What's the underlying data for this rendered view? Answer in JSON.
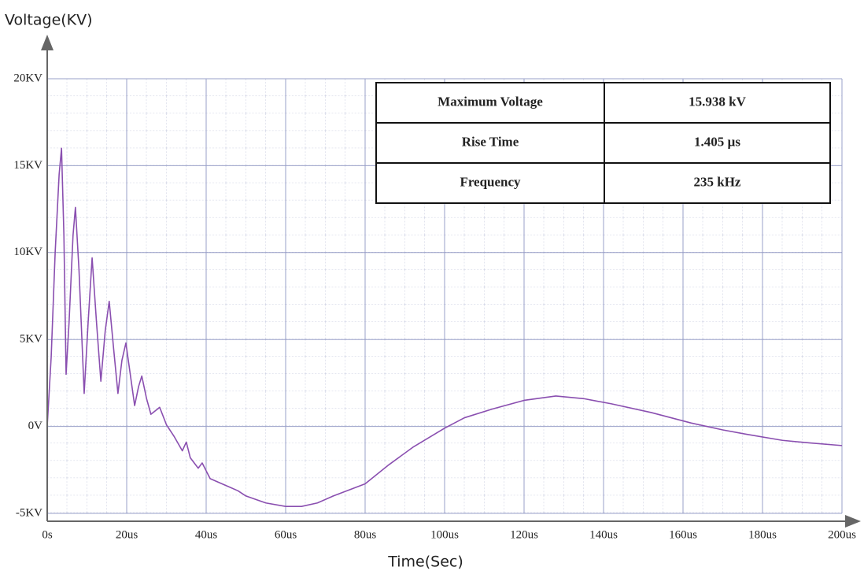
{
  "chart_data": {
    "type": "line",
    "y_label": "Voltage(KV)",
    "x_label": "Time(Sec)",
    "x": [
      0,
      1,
      2,
      3,
      3.6,
      4.2,
      4.75,
      5.5,
      6.5,
      7.1,
      8,
      9.3,
      10.3,
      11.3,
      12.4,
      13.5,
      14.6,
      15.6,
      16.7,
      17.8,
      18.8,
      19.8,
      20.9,
      22,
      23,
      23.8,
      25,
      26.1,
      27.2,
      28.3,
      30,
      32,
      34,
      35,
      36,
      38,
      39,
      41,
      44,
      46,
      48,
      50,
      55,
      60,
      64,
      68,
      72,
      80,
      86,
      92,
      100,
      105,
      112,
      120,
      128,
      135,
      142,
      152,
      162,
      170,
      176,
      185,
      192,
      200
    ],
    "series": [
      {
        "color": "#8a4fb0",
        "values": [
          0,
          4,
          10,
          14.5,
          16,
          11,
          3,
          6,
          11,
          12.6,
          9,
          1.9,
          6,
          9.7,
          6,
          2.6,
          5.5,
          7.2,
          4.5,
          1.9,
          3.8,
          4.8,
          3,
          1.2,
          2.3,
          2.9,
          1.6,
          0.7,
          0.9,
          1.1,
          0.1,
          -0.6,
          -1.4,
          -0.9,
          -1.8,
          -2.4,
          -2.1,
          -3,
          -3.3,
          -3.5,
          -3.7,
          -4.0,
          -4.4,
          -4.6,
          -4.6,
          -4.4,
          -4.0,
          -3.3,
          -2.2,
          -1.2,
          -0.1,
          0.5,
          1.0,
          1.5,
          1.75,
          1.6,
          1.3,
          0.8,
          0.2,
          -0.2,
          -0.45,
          -0.8,
          -0.95,
          -1.1
        ]
      }
    ],
    "xlim": [
      0,
      200
    ],
    "ylim": [
      -5,
      20
    ],
    "xticks": [
      {
        "value": 0,
        "label": "0s"
      },
      {
        "value": 20,
        "label": "20us"
      },
      {
        "value": 40,
        "label": "40us"
      },
      {
        "value": 60,
        "label": "60us"
      },
      {
        "value": 80,
        "label": "80us"
      },
      {
        "value": 100,
        "label": "100us"
      },
      {
        "value": 120,
        "label": "120us"
      },
      {
        "value": 140,
        "label": "140us"
      },
      {
        "value": 160,
        "label": "160us"
      },
      {
        "value": 180,
        "label": "180us"
      },
      {
        "value": 200,
        "label": "200us"
      }
    ],
    "yticks": [
      {
        "value": -5,
        "label": "-5KV"
      },
      {
        "value": 0,
        "label": "0V"
      },
      {
        "value": 5,
        "label": "5KV"
      },
      {
        "value": 10,
        "label": "10KV"
      },
      {
        "value": 15,
        "label": "15KV"
      },
      {
        "value": 20,
        "label": "20KV"
      }
    ],
    "grid": true,
    "table": {
      "rows": [
        [
          "Maximum Voltage",
          "15.938 kV"
        ],
        [
          "Rise Time",
          "1.405 µs"
        ],
        [
          "Frequency",
          "235 kHz"
        ]
      ]
    }
  }
}
